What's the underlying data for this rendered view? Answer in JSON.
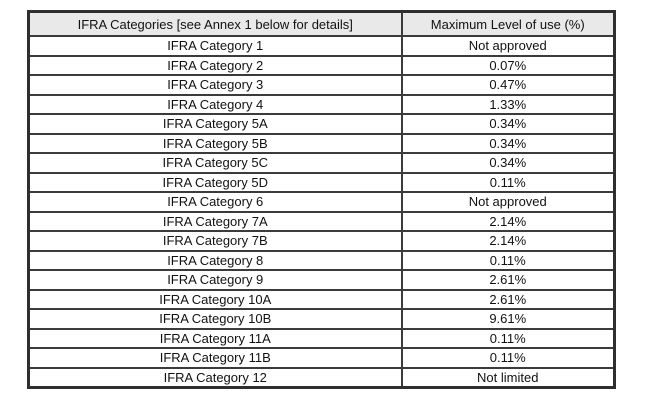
{
  "table": {
    "header": {
      "category_label": "IFRA Categories [see Annex 1 below for details]",
      "value_label": "Maximum Level of use (%)"
    },
    "rows": [
      {
        "category": "IFRA Category 1",
        "value": "Not approved"
      },
      {
        "category": "IFRA Category 2",
        "value": "0.07%"
      },
      {
        "category": "IFRA Category 3",
        "value": "0.47%"
      },
      {
        "category": "IFRA Category 4",
        "value": "1.33%"
      },
      {
        "category": "IFRA Category 5A",
        "value": "0.34%"
      },
      {
        "category": "IFRA Category 5B",
        "value": "0.34%"
      },
      {
        "category": "IFRA Category 5C",
        "value": "0.34%"
      },
      {
        "category": "IFRA Category 5D",
        "value": "0.11%"
      },
      {
        "category": "IFRA Category 6",
        "value": "Not approved"
      },
      {
        "category": "IFRA Category 7A",
        "value": "2.14%"
      },
      {
        "category": "IFRA Category 7B",
        "value": "2.14%"
      },
      {
        "category": "IFRA Category 8",
        "value": "0.11%"
      },
      {
        "category": "IFRA Category 9",
        "value": "2.61%"
      },
      {
        "category": "IFRA Category 10A",
        "value": "2.61%"
      },
      {
        "category": "IFRA Category 10B",
        "value": "9.61%"
      },
      {
        "category": "IFRA Category 11A",
        "value": "0.11%"
      },
      {
        "category": "IFRA Category 11B",
        "value": "0.11%"
      },
      {
        "category": "IFRA Category 12",
        "value": "Not limited"
      }
    ],
    "colors": {
      "header_background": "#e9e9e9",
      "border": "#3b3b3b",
      "text": "#111111"
    }
  }
}
